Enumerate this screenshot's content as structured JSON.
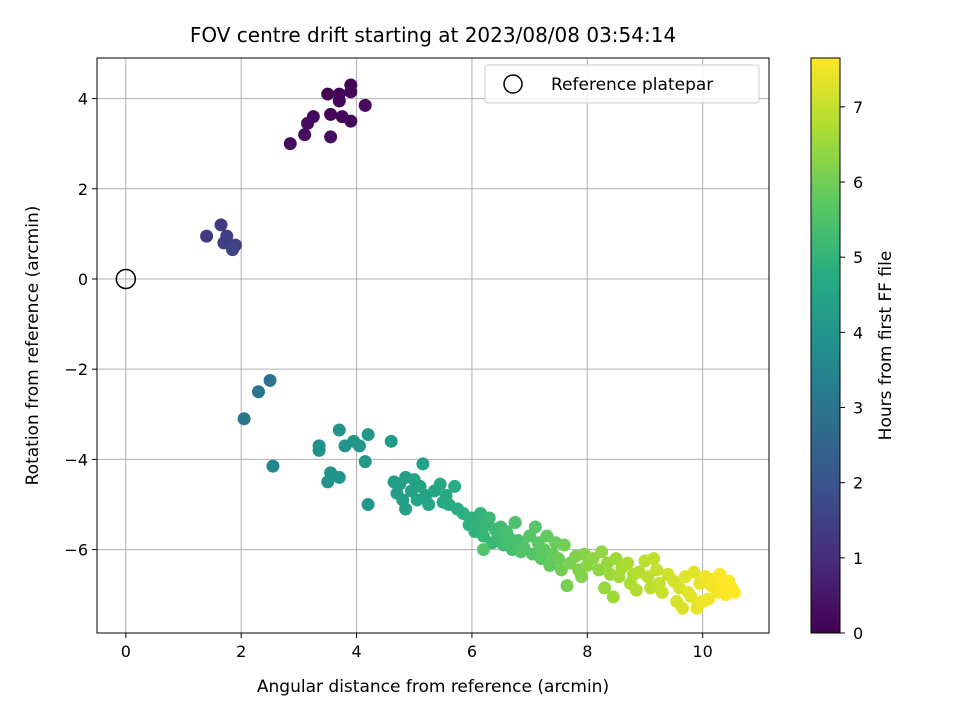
{
  "chart_data": {
    "type": "scatter",
    "title": "FOV centre drift starting at 2023/08/08 03:54:14",
    "xlabel": "Angular distance from reference (arcmin)",
    "ylabel": "Rotation from reference (arcmin)",
    "xlim": [
      -0.5,
      11.15
    ],
    "ylim": [
      -7.85,
      4.9
    ],
    "xticks": [
      0,
      2,
      4,
      6,
      8,
      10
    ],
    "yticks": [
      -6,
      -4,
      -2,
      0,
      2,
      4
    ],
    "grid": true,
    "legend": {
      "location": "top-right",
      "entries": [
        "Reference platepar"
      ]
    },
    "reference_point": {
      "name": "Reference platepar",
      "x": 0,
      "y": 0
    },
    "colorbar": {
      "label": "Hours from first FF file",
      "colormap": "viridis",
      "range": [
        0,
        7.65
      ],
      "ticks": [
        0,
        1,
        2,
        3,
        4,
        5,
        6,
        7
      ]
    },
    "points": [
      [
        3.5,
        4.1,
        0.0
      ],
      [
        3.7,
        4.1,
        0.05
      ],
      [
        3.9,
        4.3,
        0.05
      ],
      [
        3.9,
        4.15,
        0.1
      ],
      [
        3.7,
        3.95,
        0.1
      ],
      [
        3.55,
        3.65,
        0.1
      ],
      [
        3.75,
        3.6,
        0.15
      ],
      [
        3.9,
        3.5,
        0.15
      ],
      [
        4.15,
        3.85,
        0.2
      ],
      [
        3.25,
        3.6,
        0.2
      ],
      [
        3.15,
        3.45,
        0.25
      ],
      [
        3.1,
        3.2,
        0.25
      ],
      [
        3.55,
        3.15,
        0.3
      ],
      [
        2.85,
        3.0,
        0.3
      ],
      [
        1.4,
        0.95,
        1.3
      ],
      [
        1.65,
        1.2,
        1.35
      ],
      [
        1.75,
        0.95,
        1.4
      ],
      [
        1.7,
        0.8,
        1.45
      ],
      [
        1.9,
        0.75,
        1.5
      ],
      [
        1.85,
        0.65,
        1.55
      ],
      [
        2.5,
        -2.25,
        2.9
      ],
      [
        2.3,
        -2.5,
        3.0
      ],
      [
        2.05,
        -3.1,
        3.1
      ],
      [
        2.55,
        -4.15,
        3.5
      ],
      [
        3.35,
        -3.7,
        3.8
      ],
      [
        3.35,
        -3.8,
        3.85
      ],
      [
        3.7,
        -3.35,
        3.9
      ],
      [
        3.55,
        -4.3,
        3.9
      ],
      [
        3.5,
        -4.5,
        3.95
      ],
      [
        3.7,
        -4.4,
        3.95
      ],
      [
        3.8,
        -3.7,
        4.0
      ],
      [
        3.95,
        -3.6,
        4.0
      ],
      [
        4.05,
        -3.7,
        4.05
      ],
      [
        4.2,
        -3.45,
        4.05
      ],
      [
        4.15,
        -4.05,
        4.1
      ],
      [
        4.2,
        -5.0,
        4.1
      ],
      [
        4.6,
        -3.6,
        4.2
      ],
      [
        4.65,
        -4.5,
        4.25
      ],
      [
        4.7,
        -4.75,
        4.3
      ],
      [
        4.75,
        -4.55,
        4.3
      ],
      [
        4.8,
        -4.9,
        4.3
      ],
      [
        4.85,
        -4.4,
        4.35
      ],
      [
        4.85,
        -5.1,
        4.35
      ],
      [
        4.95,
        -4.7,
        4.4
      ],
      [
        5.0,
        -4.45,
        4.4
      ],
      [
        5.05,
        -4.9,
        4.45
      ],
      [
        5.1,
        -4.6,
        4.45
      ],
      [
        5.15,
        -4.1,
        4.5
      ],
      [
        5.2,
        -4.8,
        4.5
      ],
      [
        5.25,
        -5.0,
        4.55
      ],
      [
        5.35,
        -4.7,
        4.55
      ],
      [
        5.45,
        -4.55,
        4.6
      ],
      [
        5.5,
        -4.95,
        4.6
      ],
      [
        5.55,
        -4.8,
        4.65
      ],
      [
        5.6,
        -5.0,
        4.7
      ],
      [
        5.7,
        -4.6,
        4.7
      ],
      [
        5.75,
        -5.1,
        4.75
      ],
      [
        5.85,
        -5.2,
        4.8
      ],
      [
        5.95,
        -5.45,
        4.85
      ],
      [
        6.0,
        -5.3,
        4.9
      ],
      [
        6.05,
        -5.6,
        4.95
      ],
      [
        6.1,
        -5.45,
        5.0
      ],
      [
        6.15,
        -5.2,
        5.0
      ],
      [
        6.2,
        -5.7,
        5.05
      ],
      [
        6.25,
        -5.45,
        5.1
      ],
      [
        6.3,
        -5.3,
        5.15
      ],
      [
        6.35,
        -5.85,
        5.15
      ],
      [
        6.4,
        -5.55,
        5.2
      ],
      [
        6.45,
        -5.7,
        5.25
      ],
      [
        6.5,
        -5.5,
        5.25
      ],
      [
        6.55,
        -5.9,
        5.3
      ],
      [
        6.6,
        -5.6,
        5.35
      ],
      [
        6.65,
        -5.75,
        5.35
      ],
      [
        6.7,
        -6.0,
        5.4
      ],
      [
        6.75,
        -5.4,
        5.45
      ],
      [
        6.8,
        -5.8,
        5.45
      ],
      [
        6.85,
        -6.05,
        5.5
      ],
      [
        6.9,
        -5.95,
        5.55
      ],
      [
        6.2,
        -6.0,
        5.55
      ],
      [
        7.0,
        -5.7,
        5.6
      ],
      [
        7.05,
        -6.1,
        5.6
      ],
      [
        7.1,
        -5.5,
        5.65
      ],
      [
        7.15,
        -5.85,
        5.65
      ],
      [
        7.2,
        -6.2,
        5.7
      ],
      [
        7.25,
        -6.0,
        5.75
      ],
      [
        7.3,
        -5.7,
        5.8
      ],
      [
        7.35,
        -6.35,
        5.8
      ],
      [
        7.4,
        -6.1,
        5.85
      ],
      [
        7.45,
        -5.85,
        5.9
      ],
      [
        7.5,
        -6.2,
        5.95
      ],
      [
        7.55,
        -6.45,
        6.0
      ],
      [
        7.6,
        -5.9,
        6.0
      ],
      [
        7.65,
        -6.8,
        6.05
      ],
      [
        7.7,
        -6.3,
        6.1
      ],
      [
        7.8,
        -6.15,
        6.15
      ],
      [
        7.85,
        -6.45,
        6.15
      ],
      [
        7.9,
        -6.6,
        6.2
      ],
      [
        7.95,
        -6.1,
        6.25
      ],
      [
        8.0,
        -6.35,
        6.3
      ],
      [
        8.1,
        -6.2,
        6.35
      ],
      [
        8.2,
        -6.45,
        6.35
      ],
      [
        8.25,
        -6.05,
        6.4
      ],
      [
        8.3,
        -6.85,
        6.45
      ],
      [
        8.35,
        -6.3,
        6.45
      ],
      [
        8.4,
        -6.55,
        6.5
      ],
      [
        8.45,
        -7.05,
        6.55
      ],
      [
        8.5,
        -6.2,
        6.55
      ],
      [
        8.55,
        -6.6,
        6.6
      ],
      [
        8.6,
        -6.4,
        6.65
      ],
      [
        8.7,
        -6.3,
        6.7
      ],
      [
        8.75,
        -6.75,
        6.7
      ],
      [
        8.8,
        -6.55,
        6.75
      ],
      [
        8.85,
        -6.9,
        6.8
      ],
      [
        8.9,
        -6.5,
        6.8
      ],
      [
        9.0,
        -6.25,
        6.85
      ],
      [
        9.05,
        -6.6,
        6.9
      ],
      [
        9.1,
        -6.85,
        6.9
      ],
      [
        9.15,
        -6.2,
        6.95
      ],
      [
        9.2,
        -6.45,
        7.0
      ],
      [
        9.25,
        -6.75,
        7.0
      ],
      [
        9.3,
        -6.95,
        7.05
      ],
      [
        9.4,
        -6.55,
        7.1
      ],
      [
        9.5,
        -6.7,
        7.15
      ],
      [
        9.55,
        -7.15,
        7.2
      ],
      [
        9.6,
        -6.85,
        7.2
      ],
      [
        9.65,
        -7.3,
        7.25
      ],
      [
        9.7,
        -6.6,
        7.3
      ],
      [
        9.75,
        -6.95,
        7.3
      ],
      [
        9.8,
        -7.05,
        7.35
      ],
      [
        9.85,
        -6.5,
        7.35
      ],
      [
        9.9,
        -7.3,
        7.4
      ],
      [
        9.95,
        -6.75,
        7.4
      ],
      [
        10.0,
        -7.15,
        7.45
      ],
      [
        10.05,
        -6.6,
        7.45
      ],
      [
        10.1,
        -7.1,
        7.5
      ],
      [
        10.15,
        -6.8,
        7.5
      ],
      [
        10.2,
        -6.65,
        7.55
      ],
      [
        10.25,
        -6.95,
        7.55
      ],
      [
        10.3,
        -6.55,
        7.6
      ],
      [
        10.35,
        -6.8,
        7.6
      ],
      [
        10.4,
        -7.0,
        7.62
      ],
      [
        10.45,
        -6.7,
        7.62
      ],
      [
        10.5,
        -6.85,
        7.64
      ],
      [
        10.55,
        -6.95,
        7.65
      ]
    ]
  }
}
